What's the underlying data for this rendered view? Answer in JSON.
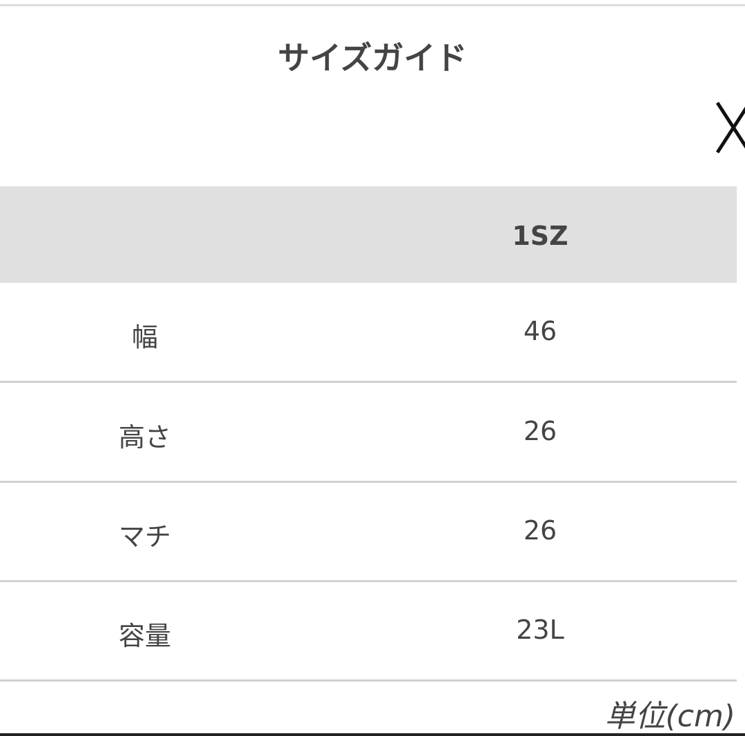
{
  "title": "サイズガイド",
  "close_icon": "close-icon",
  "table": {
    "header": [
      "",
      "1SZ"
    ],
    "rows": [
      {
        "label": "幅",
        "value": "46"
      },
      {
        "label": "高さ",
        "value": "26"
      },
      {
        "label": "マチ",
        "value": "26"
      },
      {
        "label": "容量",
        "value": "23L"
      }
    ]
  },
  "unit_note": "単位(cm)",
  "colors": {
    "header_bg": "#e0e0e0",
    "text": "#444444",
    "divider": "#d0d0d0"
  }
}
